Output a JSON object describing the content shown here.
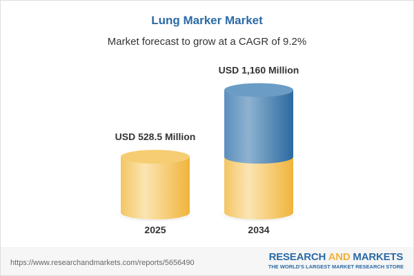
{
  "header": {
    "title": "Lung Marker Market",
    "subtitle": "Market forecast to grow at a CAGR of 9.2%"
  },
  "chart_data": {
    "type": "bar",
    "style": "3d-cylinder",
    "categories": [
      "2025",
      "2034"
    ],
    "values": [
      528.5,
      1160
    ],
    "unit": "USD Million",
    "data_labels": [
      "USD 528.5 Million",
      "USD 1,160 Million"
    ],
    "title": "Lung Marker Market",
    "subtitle": "Market forecast to grow at a CAGR of 9.2%",
    "grid": false,
    "colors": {
      "base": "#f3c45e",
      "growth": "#3d7ab0"
    }
  },
  "footer": {
    "url": "https://www.researchandmarkets.com/reports/5656490",
    "logo_part1": "RESEARCH ",
    "logo_part2": "AND",
    "logo_part3": " MARKETS",
    "logo_tagline": "THE WORLD'S LARGEST MARKET RESEARCH STORE"
  }
}
